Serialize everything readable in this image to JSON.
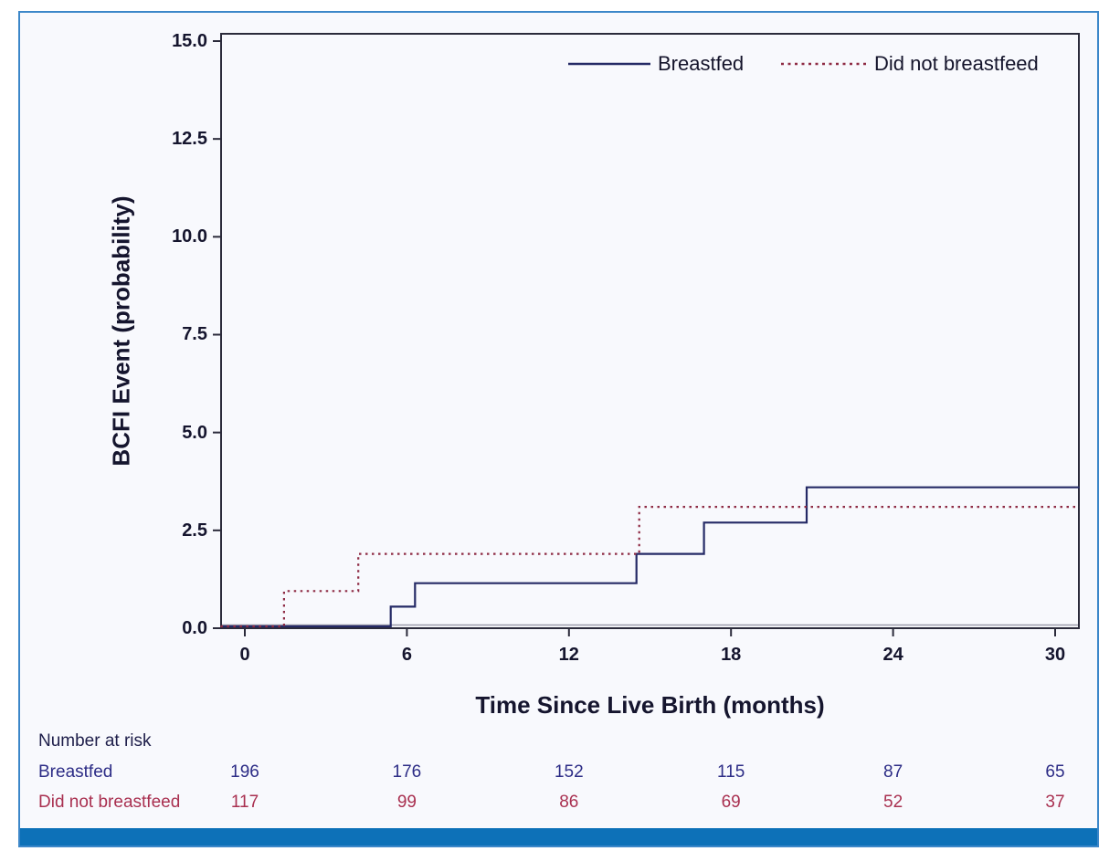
{
  "figure": {
    "background": "#f8f9fd",
    "border_color": "#3c87c9",
    "footer_bar_color": "#0d71b8",
    "axis_color": "#2b2b3b",
    "zero_echo_color": "#9b9bab",
    "text_color": "#15152e"
  },
  "chart_data": {
    "type": "line",
    "subtype": "step-cumulative-incidence",
    "title": "",
    "xlabel": "Time Since Live Birth (months)",
    "ylabel": "BCFI Event (probability)",
    "xlim": [
      -0.9,
      30.9
    ],
    "ylim": [
      0,
      15.2
    ],
    "x_ticks": [
      0,
      6,
      12,
      18,
      24,
      30
    ],
    "y_ticks": [
      0,
      2.5,
      5,
      7.5,
      10,
      12.5,
      15
    ],
    "grid": false,
    "legend_position": "top-right-inside",
    "series": [
      {
        "name": "Breastfed",
        "color": "#252a66",
        "line_style": "solid",
        "steps": [
          [
            0,
            0
          ],
          [
            5.4,
            0.55
          ],
          [
            6.3,
            1.15
          ],
          [
            14.5,
            1.9
          ],
          [
            17.0,
            2.7
          ],
          [
            20.8,
            3.6
          ]
        ],
        "x_end": 30.9
      },
      {
        "name": "Did not breastfeed",
        "color": "#8e2b44",
        "line_style": "dotted",
        "steps": [
          [
            0,
            0
          ],
          [
            1.45,
            0.95
          ],
          [
            4.2,
            1.9
          ],
          [
            14.6,
            3.1
          ]
        ],
        "x_end": 30.9
      }
    ],
    "number_at_risk": {
      "title": "Number at risk",
      "title_color": "#1e1e4a",
      "times": [
        0,
        6,
        12,
        18,
        24,
        30
      ],
      "rows": [
        {
          "label": "Breastfed",
          "color": "#2c2c86",
          "values": [
            196,
            176,
            152,
            115,
            87,
            65
          ]
        },
        {
          "label": "Did not breastfeed",
          "color": "#a93050",
          "values": [
            117,
            99,
            86,
            69,
            52,
            37
          ]
        }
      ]
    }
  }
}
